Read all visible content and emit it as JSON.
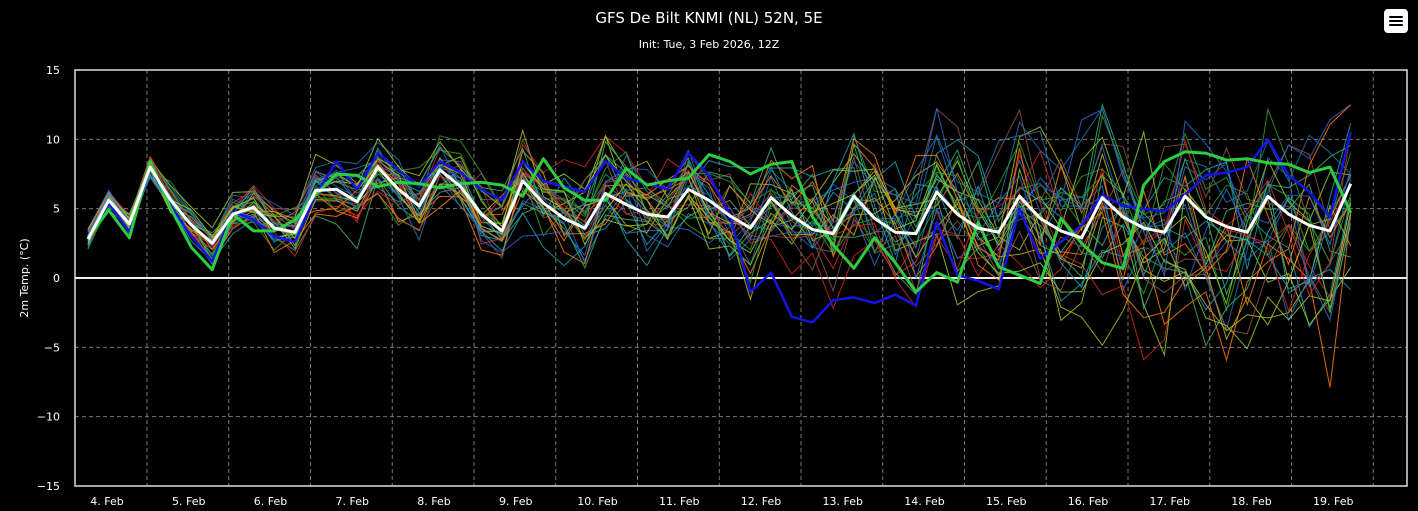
{
  "chart_data": {
    "type": "line",
    "title": "GFS De Bilt KNMI (NL) 52N, 5E",
    "subtitle": "Init: Tue, 3 Feb 2026, 12Z",
    "ylabel": "2m Temp. (°C)",
    "xlabel": "",
    "ylim": [
      -15,
      15
    ],
    "yticks": [
      "15",
      "10",
      "5",
      "0",
      "−5",
      "−10",
      "−15"
    ],
    "xlim": [
      0,
      63
    ],
    "xticks": [
      "4. Feb",
      "5. Feb",
      "6. Feb",
      "7. Feb",
      "8. Feb",
      "9. Feb",
      "10. Feb",
      "11. Feb",
      "12. Feb",
      "13. Feb",
      "14. Feb",
      "15. Feb",
      "16. Feb",
      "17. Feb",
      "18. Feb",
      "19. Feb"
    ],
    "grid": true,
    "ensemble_member_count": 30,
    "ensemble_colors": [
      "#1f77b4",
      "#2ca02c",
      "#17a2b8",
      "#bcbd22",
      "#8c564b",
      "#d62728",
      "#ff7f0e",
      "#2a6bd1",
      "#3cb371",
      "#9acd32"
    ],
    "series": [
      {
        "role": "mean",
        "color": "#ffffff",
        "values": [
          2.8,
          5.6,
          3.9,
          8.0,
          5.6,
          3.8,
          2.5,
          4.6,
          5.1,
          3.6,
          3.3,
          6.3,
          6.4,
          5.5,
          8.0,
          6.4,
          5.2,
          7.8,
          6.6,
          4.6,
          3.4,
          7.0,
          5.4,
          4.3,
          3.6,
          6.1,
          5.3,
          4.6,
          4.4,
          6.4,
          5.6,
          4.5,
          3.6,
          5.8,
          4.5,
          3.5,
          3.2,
          5.9,
          4.3,
          3.3,
          3.2,
          6.2,
          4.6,
          3.6,
          3.3,
          5.9,
          4.3,
          3.4,
          2.9,
          5.8,
          4.4,
          3.6,
          3.3,
          5.9,
          4.4,
          3.7,
          3.3,
          5.9,
          4.6,
          3.8,
          3.4,
          6.8
        ]
      },
      {
        "role": "operational",
        "color": "#2ecc40",
        "values": [
          2.9,
          4.9,
          2.9,
          8.4,
          5.0,
          2.2,
          0.6,
          4.6,
          3.4,
          3.4,
          4.2,
          6.0,
          7.5,
          7.4,
          6.6,
          6.9,
          6.8,
          6.5,
          6.8,
          6.9,
          6.7,
          5.9,
          8.6,
          6.5,
          5.6,
          5.6,
          7.9,
          6.7,
          7.0,
          7.2,
          8.9,
          8.4,
          7.5,
          8.2,
          8.4,
          4.4,
          2.4,
          0.7,
          2.9,
          1.1,
          -1.0,
          0.4,
          -0.3,
          4.0,
          0.8,
          0.2,
          -0.4,
          4.3,
          2.5,
          1.1,
          0.7,
          6.7,
          8.4,
          9.1,
          9.0,
          8.5,
          8.6,
          8.3,
          8.2,
          7.6,
          8.0,
          4.7
        ]
      },
      {
        "role": "control",
        "color": "#1414e6",
        "values": [
          2.8,
          5.4,
          3.3,
          8.0,
          5.2,
          3.0,
          1.2,
          4.8,
          4.2,
          3.0,
          2.6,
          6.0,
          8.4,
          6.4,
          9.0,
          7.8,
          6.6,
          8.4,
          7.6,
          6.4,
          5.6,
          8.4,
          7.0,
          6.6,
          6.2,
          8.4,
          7.2,
          6.8,
          6.4,
          9.0,
          7.4,
          4.6,
          -1.0,
          0.4,
          -2.8,
          -3.2,
          -1.6,
          -1.4,
          -1.8,
          -1.2,
          -2.0,
          4.0,
          0.2,
          -0.2,
          -0.8,
          5.0,
          1.4,
          2.6,
          3.8,
          6.0,
          5.2,
          5.0,
          4.8,
          6.0,
          7.4,
          7.6,
          8.0,
          10.0,
          7.4,
          6.2,
          4.4,
          10.5
        ]
      }
    ]
  },
  "ui": {
    "menu_icon": "hamburger-menu-icon"
  }
}
